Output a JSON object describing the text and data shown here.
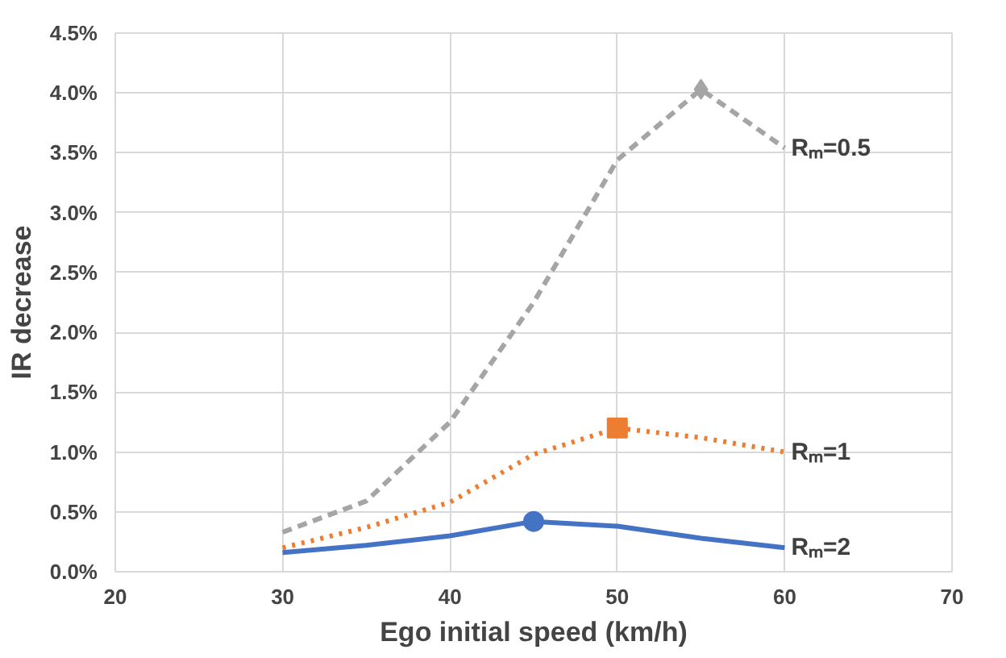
{
  "chart_data": {
    "type": "line",
    "xlabel": "Ego initial speed (km/h)",
    "ylabel": "IR decrease",
    "x": [
      30,
      35,
      40,
      45,
      50,
      55,
      60
    ],
    "xlim": [
      20,
      70
    ],
    "xticks": [
      20,
      30,
      40,
      50,
      60,
      70
    ],
    "ylim": [
      0,
      4.5
    ],
    "yticks": [
      {
        "value": 0,
        "label": "0.0%"
      },
      {
        "value": 0.5,
        "label": "0.5%"
      },
      {
        "value": 1,
        "label": "1.0%"
      },
      {
        "value": 1.5,
        "label": "1.5%"
      },
      {
        "value": 2,
        "label": "2.0%"
      },
      {
        "value": 2.5,
        "label": "2.5%"
      },
      {
        "value": 3,
        "label": "3.0%"
      },
      {
        "value": 3.5,
        "label": "3.5%"
      },
      {
        "value": 4,
        "label": "4.0%"
      },
      {
        "value": 4.5,
        "label": "4.5%"
      }
    ],
    "grid": true,
    "series": [
      {
        "name": "Rₘ=0.5",
        "color": "#a5a5a5",
        "line_style": "dashed",
        "values": [
          0.33,
          0.59,
          1.25,
          2.25,
          3.44,
          4.03,
          3.54
        ]
      },
      {
        "name": "Rₘ=1",
        "color": "#ed7d31",
        "line_style": "dotted",
        "values": [
          0.2,
          0.37,
          0.58,
          0.98,
          1.2,
          1.12,
          1.0
        ]
      },
      {
        "name": "Rₘ=2",
        "color": "#4472c4",
        "line_style": "solid",
        "values": [
          0.16,
          0.22,
          0.3,
          0.42,
          0.38,
          0.28,
          0.2
        ]
      },
      {
        "type": "scatter",
        "marker": "diamond",
        "color": "#a5a5a5",
        "x": [
          55
        ],
        "values": [
          4.03
        ]
      },
      {
        "type": "scatter",
        "marker": "square",
        "color": "#ed7d31",
        "x": [
          50
        ],
        "values": [
          1.2
        ]
      },
      {
        "type": "scatter",
        "marker": "circle",
        "color": "#4472c4",
        "x": [
          45
        ],
        "values": [
          0.42
        ]
      }
    ]
  }
}
